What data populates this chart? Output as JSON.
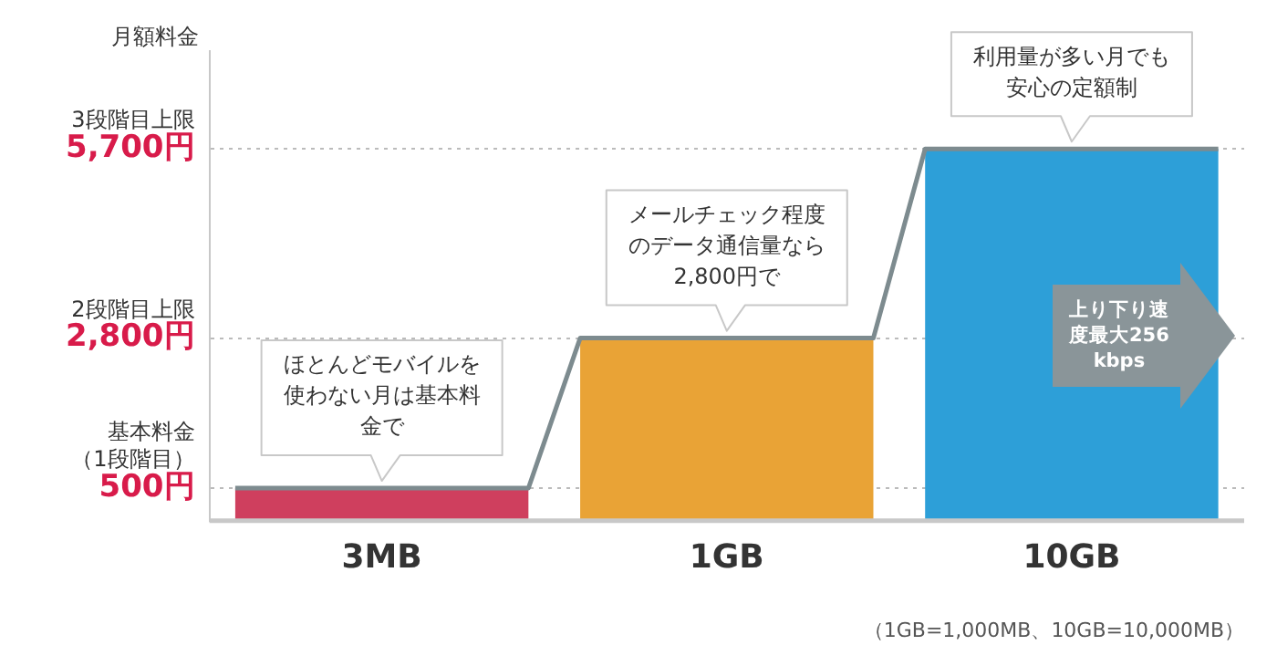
{
  "chart_data": {
    "type": "bar",
    "ylabel": "月額料金",
    "categories": [
      "3MB",
      "1GB",
      "10GB"
    ],
    "values": [
      500,
      2800,
      5700
    ],
    "colors": [
      "#cf3f5e",
      "#e9a336",
      "#2d9fd8"
    ],
    "ylim": [
      0,
      7200
    ],
    "yticks": [
      {
        "value": 500,
        "label": "500円"
      },
      {
        "value": 2800,
        "label": "2,800円"
      },
      {
        "value": 5700,
        "label": "5,700円"
      }
    ],
    "grid": "y",
    "annotations": [
      "上り下り速度最大256kbps",
      "（1GB=1,000MB、10GB=10,000MB）",
      "基本料金（1段階目）",
      "2段階目上限",
      "3段階目上限",
      {
        "text": "ほとんどモバイルを使わない月は基本料金で",
        "x": "3MB",
        "y": 500
      },
      {
        "text": "メールチェック程度のデータ通信量なら2,800円で",
        "x": "1GB",
        "y": 2800
      },
      {
        "text": "利用量が多い月でも安心の定額制",
        "x": "10GB",
        "y": 5700
      }
    ]
  }
}
